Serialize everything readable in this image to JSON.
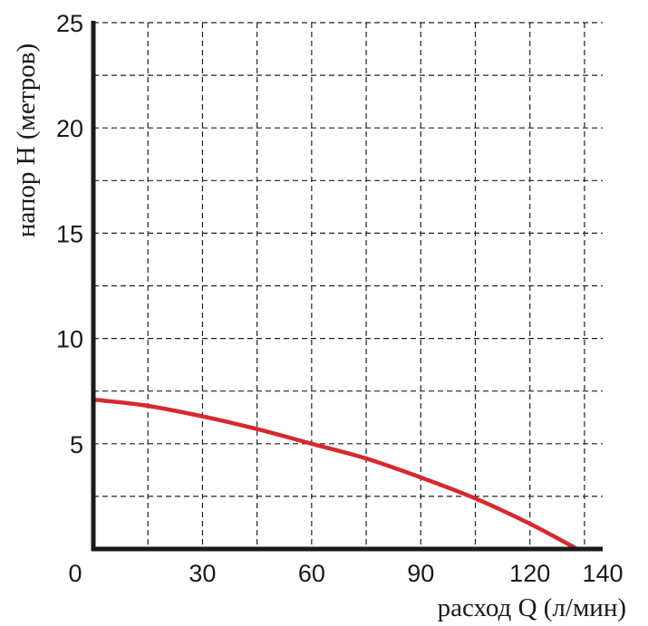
{
  "chart_data": {
    "type": "line",
    "xlabel": "расход Q (л/мин)",
    "ylabel": "напор H (метров)",
    "xlim": [
      0,
      140
    ],
    "ylim": [
      0,
      25
    ],
    "x_ticks": [
      0,
      30,
      60,
      90,
      120,
      140
    ],
    "x_tick_labels": [
      "0",
      "30",
      "60",
      "90",
      "120",
      "140"
    ],
    "y_ticks": [
      5,
      10,
      15,
      20,
      25
    ],
    "y_tick_labels": [
      "5",
      "10",
      "15",
      "20",
      "25"
    ],
    "x_grid": [
      15,
      30,
      45,
      60,
      75,
      90,
      105,
      120,
      135
    ],
    "y_grid": [
      2.5,
      5,
      7.5,
      10,
      12.5,
      15,
      17.5,
      20,
      22.5,
      25
    ],
    "grid": true,
    "grid_style": "dashed",
    "series": [
      {
        "color": "#d7282f",
        "x": [
          0,
          15,
          30,
          45,
          60,
          75,
          90,
          105,
          120,
          133
        ],
        "y": [
          7.1,
          6.8,
          6.3,
          5.7,
          5.0,
          4.3,
          3.4,
          2.4,
          1.2,
          0
        ]
      }
    ]
  }
}
